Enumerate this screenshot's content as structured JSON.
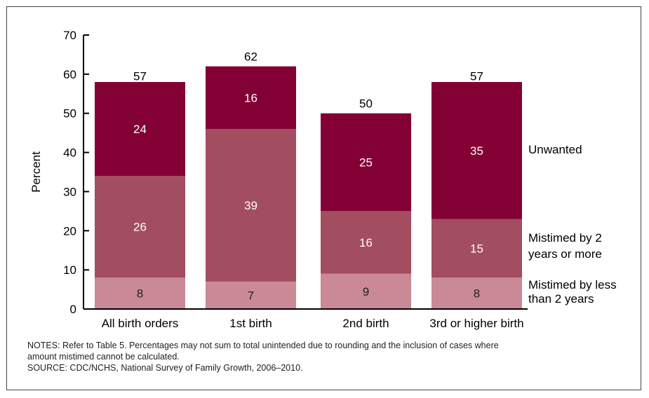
{
  "chart_data": {
    "type": "bar",
    "stacked": true,
    "ylabel": "Percent",
    "ylim": [
      0,
      70
    ],
    "yticks": [
      0,
      10,
      20,
      30,
      40,
      50,
      60,
      70
    ],
    "categories": [
      "All birth orders",
      "1st birth",
      "2nd birth",
      "3rd or higher birth"
    ],
    "totals": [
      57,
      62,
      50,
      57
    ],
    "series": [
      {
        "name": "Mistimed by less than 2 years",
        "label_lines": [
          "Mistimed by less",
          "than 2 years"
        ],
        "values": [
          8,
          7,
          9,
          8
        ],
        "color": "#c98a96"
      },
      {
        "name": "Mistimed by 2 years or more",
        "label_lines": [
          "Mistimed by 2",
          "years or more"
        ],
        "values": [
          26,
          39,
          16,
          15
        ],
        "color": "#a34d60"
      },
      {
        "name": "Unwanted",
        "label_lines": [
          "Unwanted"
        ],
        "values": [
          24,
          16,
          25,
          35
        ],
        "color": "#830034"
      }
    ],
    "grid": false,
    "legend": "right, inline labels"
  },
  "notes": {
    "line1": "NOTES: Refer to Table 5. Percentages may not sum to total unintended due to rounding and the inclusion of cases where",
    "line2": "amount mistimed cannot be calculated.",
    "source": "SOURCE: CDC/NCHS, National Survey of Family Growth, 2006–2010."
  }
}
